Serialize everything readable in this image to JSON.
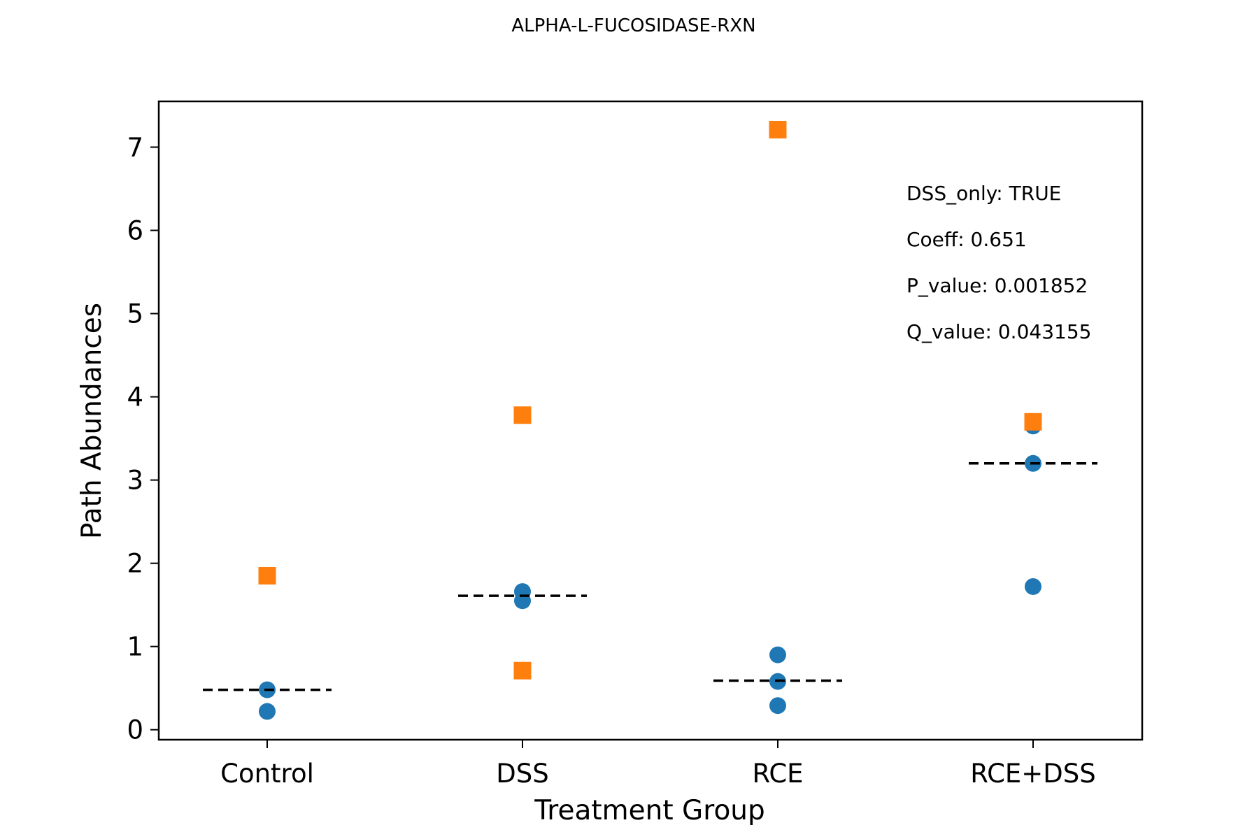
{
  "chart_data": {
    "type": "scatter",
    "title": "ALPHA-L-FUCOSIDASE-RXN",
    "xlabel": "Treatment Group",
    "ylabel": "Path Abundances",
    "categories": [
      "Control",
      "DSS",
      "RCE",
      "RCE+DSS"
    ],
    "ylim": [
      -0.12,
      7.55
    ],
    "yticks": [
      0,
      1,
      2,
      3,
      4,
      5,
      6,
      7
    ],
    "grid": false,
    "colors": {
      "circle": "#1f77b4",
      "square": "#ff7f0e",
      "median": "#000000"
    },
    "series": [
      {
        "marker": "circle",
        "points": [
          {
            "category": "Control",
            "y": 0.48
          },
          {
            "category": "Control",
            "y": 0.22
          },
          {
            "category": "DSS",
            "y": 1.66
          },
          {
            "category": "DSS",
            "y": 1.55
          },
          {
            "category": "RCE",
            "y": 0.9
          },
          {
            "category": "RCE",
            "y": 0.58
          },
          {
            "category": "RCE",
            "y": 0.29
          },
          {
            "category": "RCE+DSS",
            "y": 3.65
          },
          {
            "category": "RCE+DSS",
            "y": 3.2
          },
          {
            "category": "RCE+DSS",
            "y": 1.72
          }
        ]
      },
      {
        "marker": "square",
        "points": [
          {
            "category": "Control",
            "y": 1.85
          },
          {
            "category": "DSS",
            "y": 3.78
          },
          {
            "category": "DSS",
            "y": 0.71
          },
          {
            "category": "RCE",
            "y": 7.21
          },
          {
            "category": "RCE+DSS",
            "y": 3.7
          }
        ]
      }
    ],
    "medians": [
      {
        "category": "Control",
        "y": 0.48
      },
      {
        "category": "DSS",
        "y": 1.61
      },
      {
        "category": "RCE",
        "y": 0.59
      },
      {
        "category": "RCE+DSS",
        "y": 3.2
      }
    ],
    "annotations": [
      "DSS_only: TRUE",
      "Coeff: 0.651",
      "P_value: 0.001852",
      "Q_value: 0.043155"
    ],
    "annotation_position": "top-right"
  }
}
